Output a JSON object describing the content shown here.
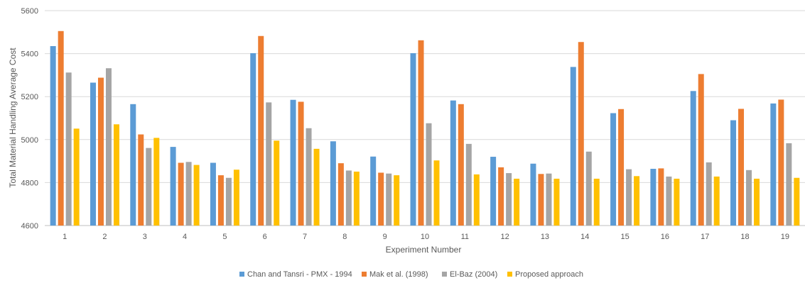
{
  "chart_data": {
    "type": "bar",
    "title": "",
    "xlabel": "Experiment Number",
    "ylabel": "Total Material Handling Average Cost",
    "ylim": [
      4600,
      5600
    ],
    "yticks": [
      4600,
      4800,
      5000,
      5200,
      5400,
      5600
    ],
    "grid": true,
    "legend_position": "bottom",
    "categories": [
      "1",
      "2",
      "3",
      "4",
      "5",
      "6",
      "7",
      "8",
      "9",
      "10",
      "11",
      "12",
      "13",
      "14",
      "15",
      "16",
      "17",
      "18",
      "19"
    ],
    "series": [
      {
        "name": "Chan and Tansri - PMX - 1994",
        "color": "#5B9BD5",
        "values": [
          5435,
          5265,
          5165,
          4966,
          4892,
          5402,
          5185,
          4992,
          4921,
          5402,
          5182,
          4920,
          4888,
          5338,
          5123,
          4864,
          5226,
          5090,
          5168
        ]
      },
      {
        "name": "Mak et al. (1998)",
        "color": "#ED7D31",
        "values": [
          5505,
          5288,
          5024,
          4892,
          4834,
          5482,
          5176,
          4890,
          4846,
          5462,
          5165,
          4871,
          4840,
          5454,
          5142,
          4866,
          5305,
          5143,
          5186
        ]
      },
      {
        "name": "El-Baz (2004)",
        "color": "#A5A5A5",
        "values": [
          5312,
          5332,
          4961,
          4896,
          4822,
          5173,
          5053,
          4856,
          4842,
          5076,
          4980,
          4844,
          4842,
          4944,
          4862,
          4828,
          4894,
          4858,
          4983
        ]
      },
      {
        "name": "Proposed approach",
        "color": "#FFC000",
        "values": [
          5051,
          5071,
          5008,
          4882,
          4860,
          4995,
          4957,
          4851,
          4834,
          4903,
          4838,
          4818,
          4818,
          4818,
          4830,
          4818,
          4828,
          4818,
          4822
        ]
      }
    ]
  }
}
